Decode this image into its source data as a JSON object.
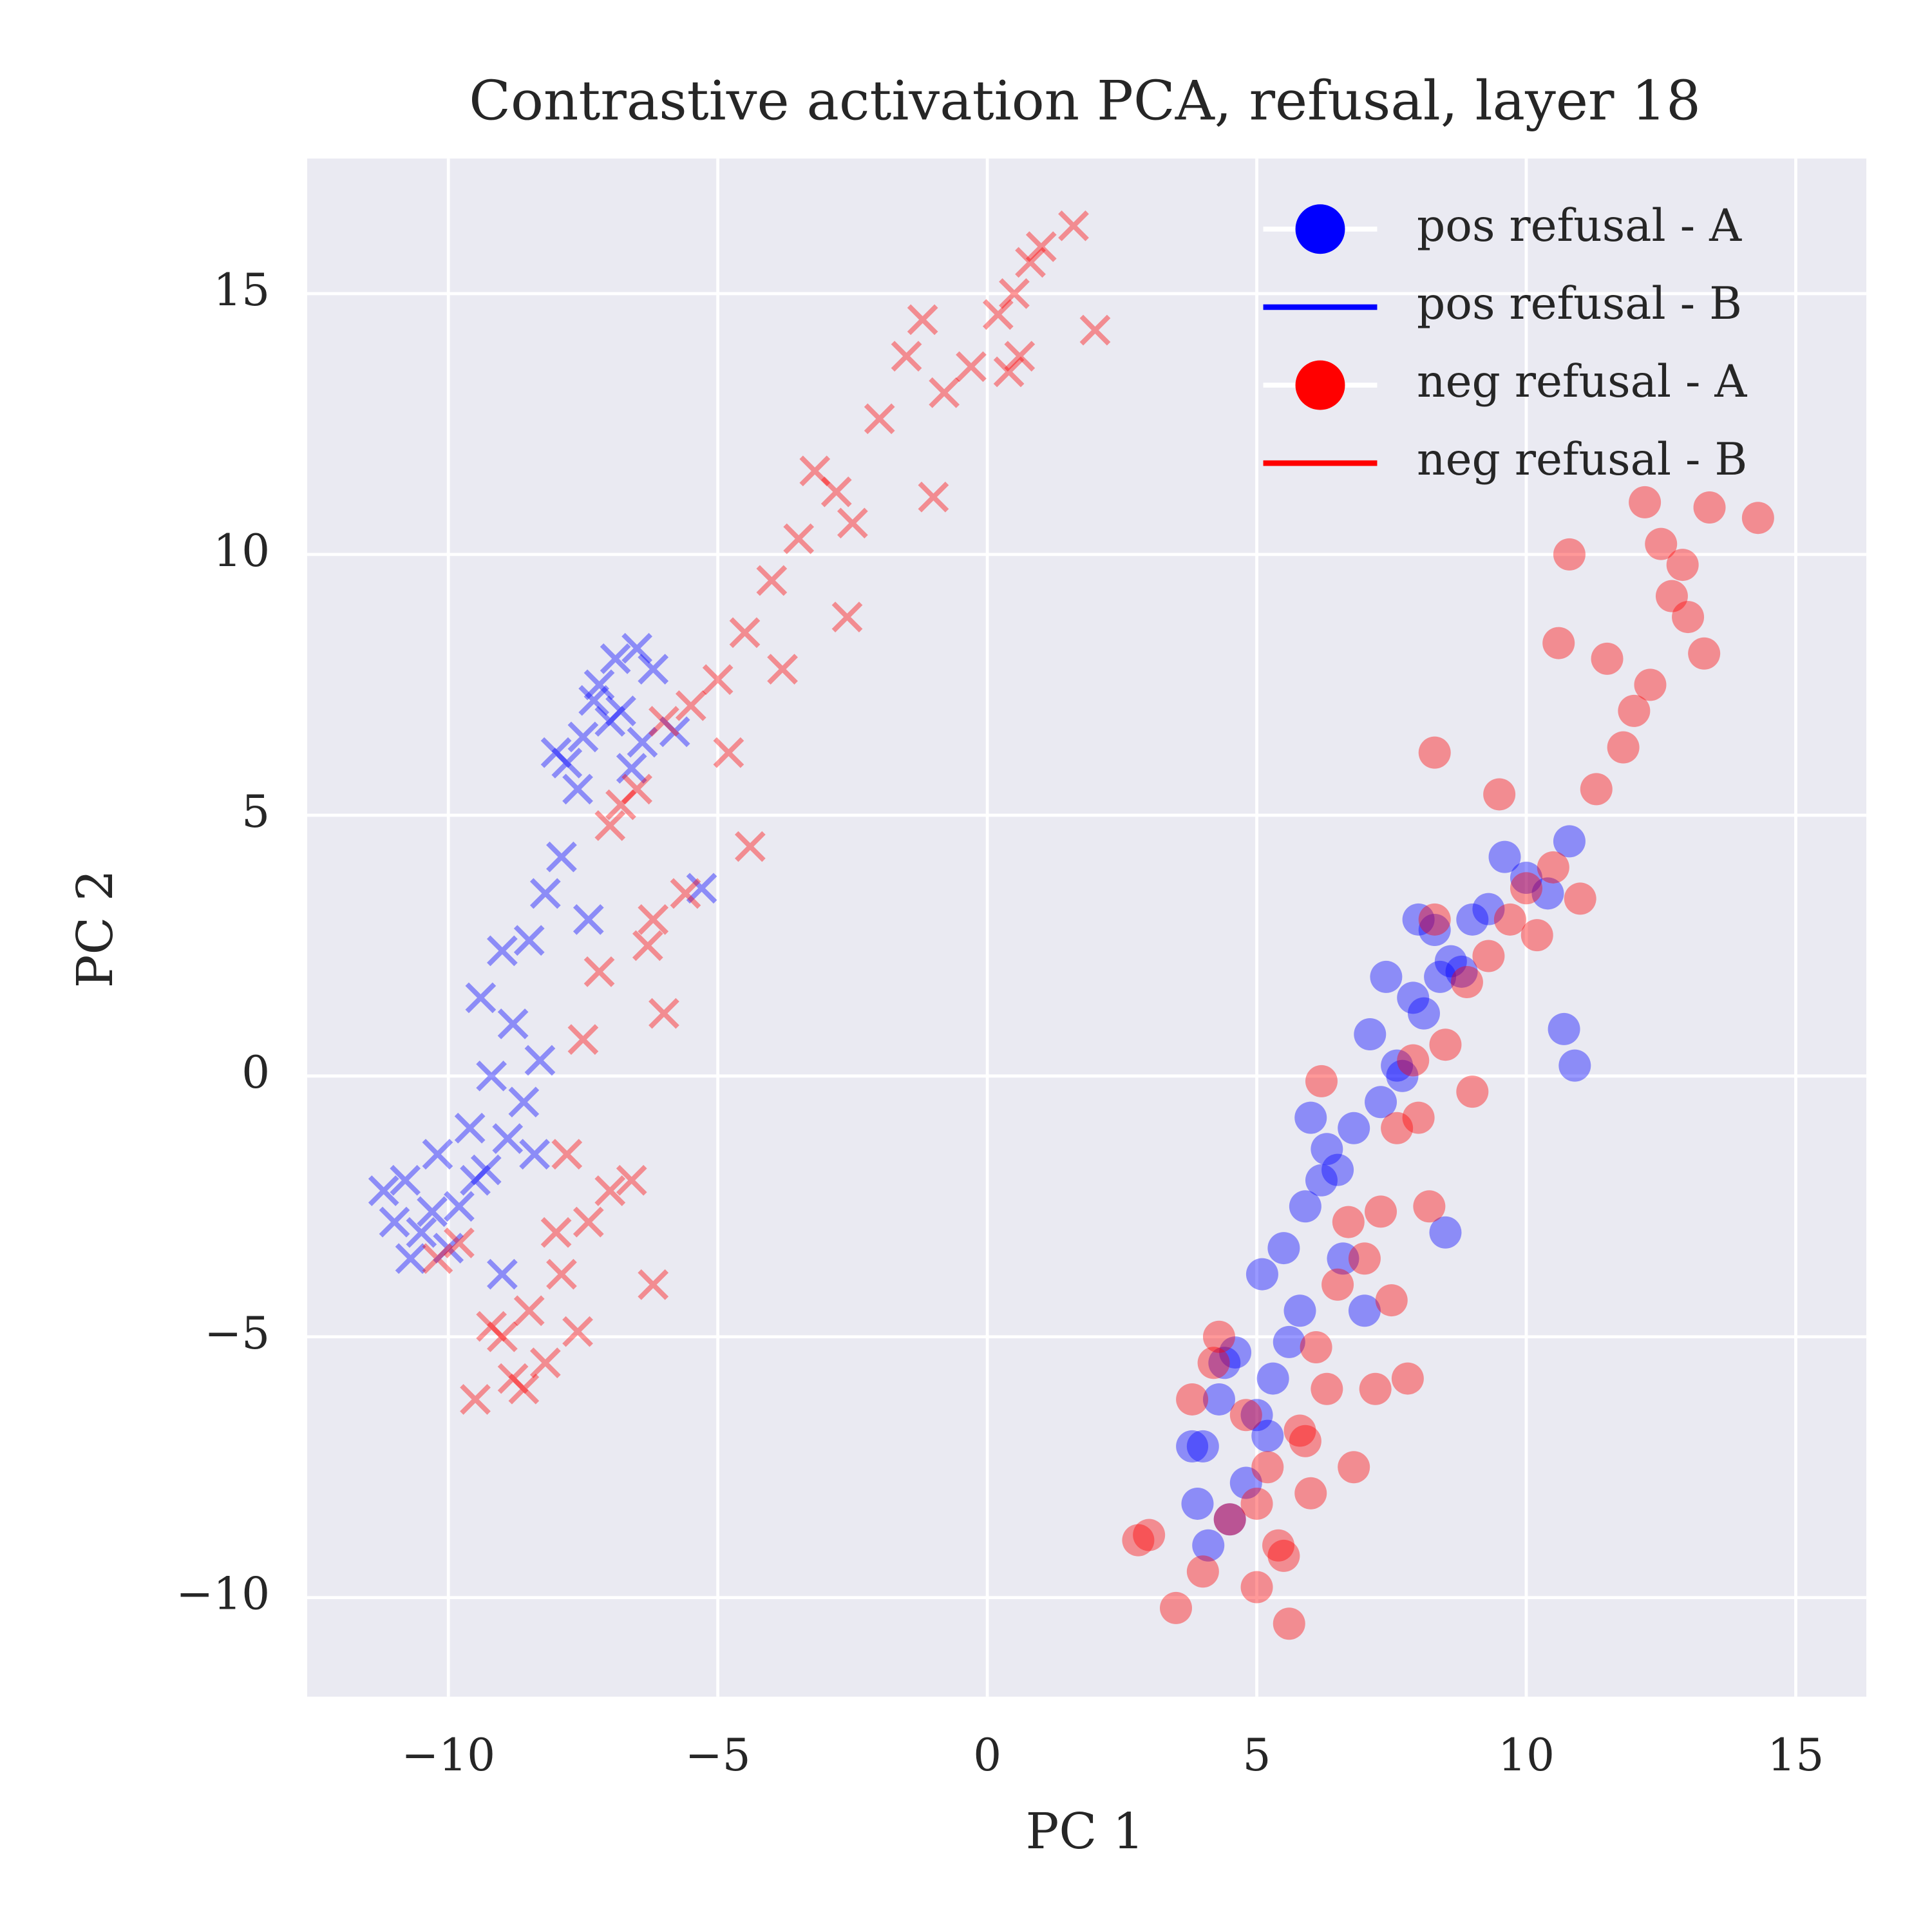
{
  "chart_data": {
    "type": "scatter",
    "title": "Contrastive activation PCA, refusal, layer 18",
    "x_label": "PC 1",
    "y_label": "PC 2",
    "xlim": [
      -12.62,
      16.31
    ],
    "ylim": [
      -11.9,
      17.59
    ],
    "xticks": [
      {
        "value": -10,
        "label": "−10"
      },
      {
        "value": -5,
        "label": "−5"
      },
      0,
      5,
      10,
      15
    ],
    "yticks": [
      {
        "value": -10,
        "label": "−10"
      },
      {
        "value": -5,
        "label": "−5"
      },
      0,
      5,
      10,
      15
    ],
    "grid": true,
    "legend": "upper right",
    "alpha": 0.4,
    "series": [
      {
        "name": "pos refusal - A",
        "color": "#0000ff",
        "marker": "o",
        "x": [
          4.0,
          4.3,
          3.8,
          4.6,
          5.0,
          4.5,
          4.1,
          4.8,
          5.3,
          5.6,
          5.1,
          5.5,
          5.9,
          6.2,
          5.8,
          6.5,
          6.0,
          6.6,
          7.0,
          6.8,
          6.3,
          7.3,
          7.1,
          7.6,
          7.4,
          7.9,
          8.0,
          8.3,
          8.1,
          8.6,
          8.8,
          9.0,
          9.3,
          9.6,
          10.0,
          10.4,
          10.8,
          10.7,
          10.9,
          8.5,
          4.4,
          3.9,
          5.2,
          8.4,
          7.7
        ],
        "values": [
          -7.1,
          -6.2,
          -7.1,
          -5.3,
          -6.5,
          -8.5,
          -9.0,
          -7.8,
          -5.8,
          -5.1,
          -3.8,
          -3.3,
          -2.5,
          -2.0,
          -4.5,
          -1.8,
          -0.8,
          -3.5,
          -4.5,
          -1.0,
          -1.4,
          -0.5,
          0.8,
          0.2,
          1.9,
          1.5,
          3.0,
          2.8,
          1.2,
          2.2,
          2.0,
          3.0,
          3.2,
          4.2,
          3.8,
          3.5,
          4.5,
          0.9,
          0.2,
          -3.0,
          -5.5,
          -8.2,
          -6.9,
          1.9,
          0.0
        ]
      },
      {
        "name": "pos refusal - B",
        "color": "#0000ff",
        "marker": "x",
        "x": [
          -7.2,
          -6.8,
          -6.5,
          -7.5,
          -7.8,
          -6.2,
          -7.0,
          -6.6,
          -7.3,
          -6.9,
          -8.0,
          -7.6,
          -6.4,
          -5.8,
          -5.3,
          -7.9,
          -8.2,
          -7.4,
          -8.5,
          -9.0,
          -9.4,
          -8.8,
          -8.3,
          -9.2,
          -8.6,
          -9.6,
          -10.2,
          -10.8,
          -11.0,
          -10.5,
          -9.8,
          -9.3,
          -10.0,
          -10.7,
          -11.2,
          -9.5,
          -8.9,
          -10.3,
          -9.0,
          -8.4
        ],
        "values": [
          7.5,
          7.0,
          8.2,
          6.5,
          6.0,
          7.8,
          6.8,
          5.9,
          7.2,
          8.0,
          6.2,
          5.5,
          6.4,
          6.6,
          3.6,
          4.2,
          3.5,
          3.0,
          2.6,
          2.4,
          1.5,
          1.0,
          0.3,
          0.0,
          -0.5,
          -1.0,
          -1.5,
          -2.0,
          -2.8,
          -3.0,
          -2.5,
          -1.8,
          -3.3,
          -3.5,
          -2.2,
          -2.0,
          -1.2,
          -2.6,
          -3.8,
          -1.5
        ]
      },
      {
        "name": "neg refusal - A",
        "color": "#ff0000",
        "marker": "o",
        "x": [
          3.5,
          4.0,
          4.5,
          5.0,
          5.5,
          6.0,
          5.2,
          4.8,
          5.8,
          6.3,
          6.8,
          5.6,
          4.2,
          3.0,
          2.8,
          5.4,
          6.1,
          6.5,
          7.0,
          7.5,
          7.8,
          8.2,
          7.2,
          6.7,
          8.0,
          8.5,
          8.9,
          9.3,
          9.7,
          10.0,
          10.5,
          10.2,
          11.0,
          11.3,
          11.8,
          12.0,
          12.3,
          12.7,
          12.5,
          13.0,
          13.4,
          12.2,
          12.9,
          13.3,
          14.3,
          11.5,
          10.6,
          8.3,
          9.0,
          9.5,
          10.8,
          7.9,
          7.6,
          5.0,
          4.3,
          3.8,
          5.9,
          6.2,
          7.3,
          8.3
        ],
        "values": [
          -10.2,
          -9.5,
          -8.5,
          -9.8,
          -9.2,
          -8.0,
          -7.5,
          -6.5,
          -6.8,
          -6.0,
          -7.5,
          -10.5,
          -5.5,
          -8.8,
          -8.9,
          -9.0,
          -5.2,
          -4.0,
          -3.5,
          -4.3,
          -5.8,
          -2.5,
          -6.0,
          -2.8,
          -0.8,
          0.6,
          1.8,
          2.3,
          3.0,
          3.6,
          4.0,
          2.7,
          3.4,
          5.5,
          6.3,
          7.0,
          7.5,
          9.2,
          10.2,
          8.8,
          10.9,
          11.0,
          9.8,
          8.1,
          10.7,
          8.0,
          8.3,
          6.2,
          -0.3,
          5.4,
          10.0,
          0.3,
          -1.0,
          -8.2,
          -5.0,
          -6.2,
          -7.0,
          -0.1,
          -2.6,
          3.0
        ]
      },
      {
        "name": "neg refusal - B",
        "color": "#ff0000",
        "marker": "x",
        "x": [
          0.5,
          0.8,
          0.2,
          1.0,
          0.6,
          1.6,
          -1.2,
          2.0,
          0.4,
          -0.3,
          -0.8,
          -1.5,
          -2.0,
          -2.5,
          -2.8,
          -3.2,
          -3.5,
          -1.0,
          -4.0,
          -2.6,
          -4.5,
          -3.8,
          -5.0,
          -5.5,
          -4.8,
          -4.4,
          -6.0,
          -5.6,
          -6.5,
          -7.0,
          -6.8,
          -6.3,
          -7.2,
          -6.0,
          -6.2,
          -7.5,
          -7.8,
          -7.0,
          -7.4,
          -6.6,
          -8.0,
          -8.5,
          -9.0,
          -8.8,
          -9.5,
          -8.2,
          -7.6,
          -9.8,
          -10.2,
          -6.2,
          -8.6,
          -9.2,
          -7.9
        ],
        "values": [
          15.0,
          15.6,
          14.6,
          15.9,
          13.8,
          16.3,
          14.5,
          14.3,
          13.5,
          13.6,
          13.1,
          13.8,
          12.6,
          10.6,
          11.2,
          11.6,
          10.3,
          11.1,
          9.5,
          8.8,
          8.5,
          7.8,
          7.6,
          7.1,
          6.2,
          4.4,
          6.8,
          3.5,
          5.5,
          4.8,
          5.2,
          2.5,
          2.0,
          1.2,
          3.0,
          0.7,
          -1.5,
          -2.2,
          -2.8,
          -2.0,
          -3.0,
          -4.5,
          -5.0,
          -5.8,
          -6.2,
          -5.5,
          -4.9,
          -3.2,
          -3.5,
          -4.0,
          -6.0,
          -4.8,
          -3.8
        ]
      }
    ]
  }
}
